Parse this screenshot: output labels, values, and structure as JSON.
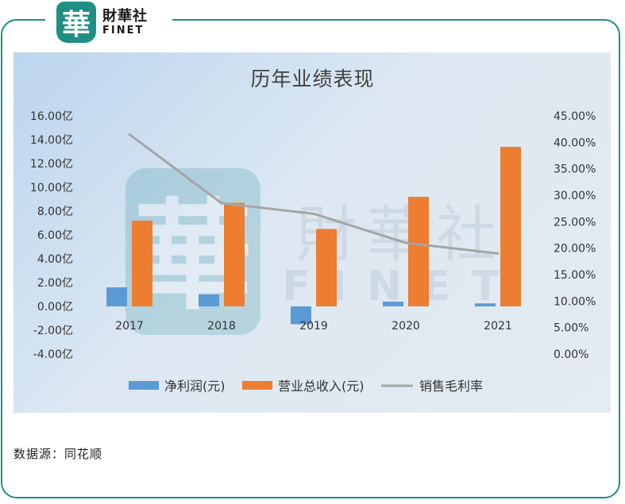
{
  "brand": {
    "logo_char": "華",
    "name_cn": "財華社",
    "name_en": "FINET",
    "watermark_char": "華",
    "watermark_cn": "財華社",
    "watermark_en": "FINET"
  },
  "colors": {
    "frame": "#1f8f86",
    "bar_profit": "#5b9bd5",
    "bar_revenue": "#ed7d31",
    "line_margin": "#a5a5a5"
  },
  "chart_data": {
    "type": "bar+line",
    "title": "历年业绩表现",
    "categories": [
      "2017",
      "2018",
      "2019",
      "2020",
      "2021"
    ],
    "left_axis": {
      "ticks": [
        "16.00亿",
        "14.00亿",
        "12.00亿",
        "10.00亿",
        "8.00亿",
        "6.00亿",
        "4.00亿",
        "2.00亿",
        "0.00亿",
        "-2.00亿",
        "-4.00亿"
      ],
      "ylim": [
        -4,
        16
      ],
      "step": 2
    },
    "right_axis": {
      "ticks": [
        "45.00%",
        "40.00%",
        "35.00%",
        "30.00%",
        "25.00%",
        "20.00%",
        "15.00%",
        "10.00%",
        "5.00%",
        "0.00%"
      ],
      "ylim": [
        0,
        45
      ],
      "step": 5
    },
    "series": [
      {
        "name": "净利润(元)",
        "type": "bar",
        "axis": "left",
        "values": [
          1.6,
          1.0,
          -1.5,
          0.4,
          0.25
        ]
      },
      {
        "name": "营业总收入(元)",
        "type": "bar",
        "axis": "left",
        "values": [
          7.2,
          8.7,
          6.5,
          9.2,
          13.4
        ]
      },
      {
        "name": "销售毛利率",
        "type": "line",
        "axis": "right",
        "values": [
          41.5,
          28.5,
          26.5,
          21.0,
          19.0
        ]
      }
    ]
  },
  "footer": {
    "source": "数据源：同花顺"
  }
}
